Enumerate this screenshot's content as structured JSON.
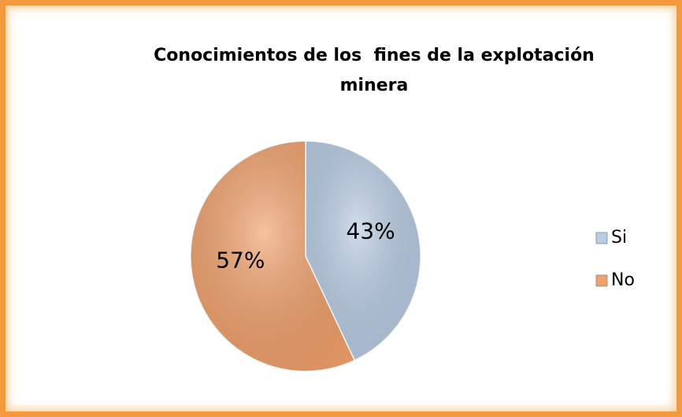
{
  "chart_data": {
    "type": "pie",
    "title": "Conocimientos de los  fines de la explotación minera",
    "categories": [
      "Si",
      "No"
    ],
    "values": [
      43,
      57
    ],
    "value_labels": [
      "43%",
      "57%"
    ],
    "colors": [
      "#b9cde5",
      "#f2a16b"
    ],
    "legend": "right"
  }
}
